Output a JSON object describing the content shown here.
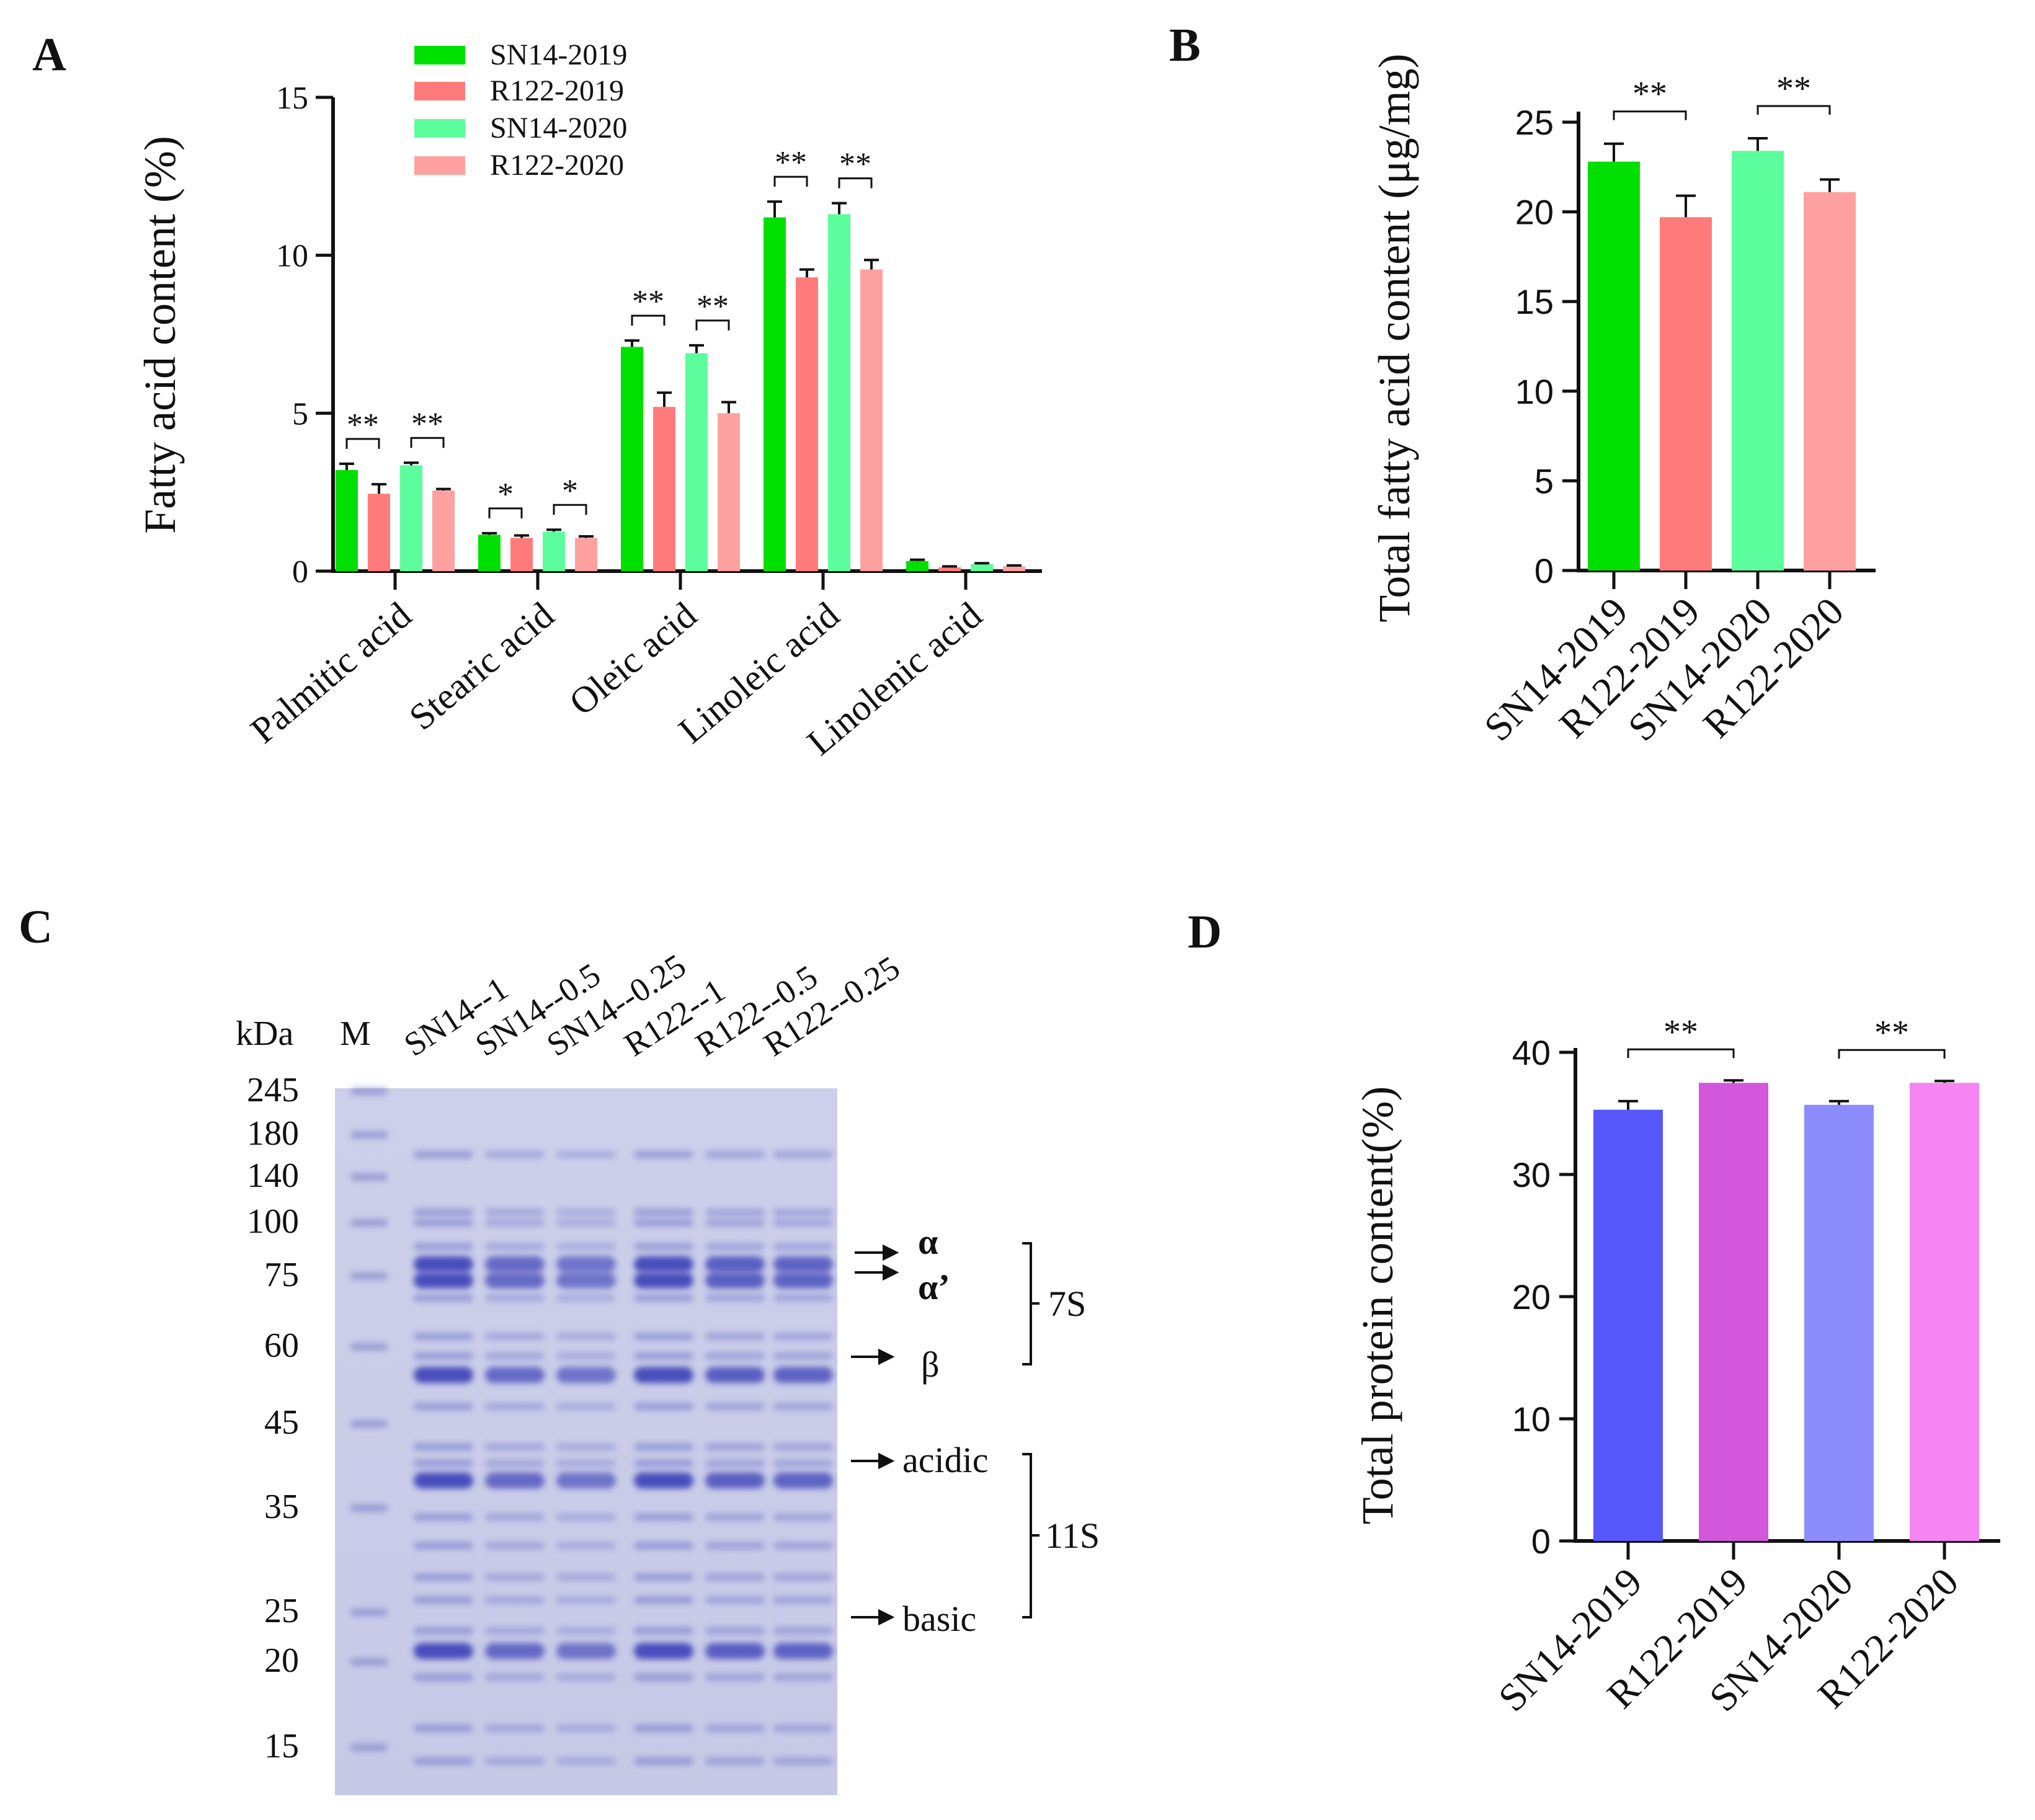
{
  "panel_labels": {
    "a": "A",
    "b": "B",
    "c": "C",
    "d": "D"
  },
  "chart_data": [
    {
      "panel": "A",
      "type": "bar",
      "title": "",
      "xlabel": "",
      "ylabel": "Fatty acid content  (%)",
      "ylim": [
        0,
        15
      ],
      "yticks": [
        "0",
        "5",
        "10",
        "15"
      ],
      "categories": [
        "Palmitic acid",
        "Stearic acid",
        "Oleic acid",
        "Linoleic acid",
        "Linolenic acid"
      ],
      "legend_position": "top-center",
      "series": [
        {
          "name": "SN14-2019",
          "color": "#00e000",
          "values": [
            3.2,
            1.15,
            7.1,
            11.2,
            0.32
          ],
          "errors": [
            0.2,
            0.05,
            0.2,
            0.5,
            0.04
          ]
        },
        {
          "name": "R122-2019",
          "color": "#ff7b7b",
          "values": [
            2.45,
            1.05,
            5.2,
            9.3,
            0.12
          ],
          "errors": [
            0.3,
            0.08,
            0.45,
            0.25,
            0.03
          ]
        },
        {
          "name": "SN14-2020",
          "color": "#5cfd9c",
          "values": [
            3.35,
            1.25,
            6.9,
            11.3,
            0.22
          ],
          "errors": [
            0.08,
            0.06,
            0.25,
            0.35,
            0.03
          ]
        },
        {
          "name": "R122-2020",
          "color": "#ffa0a0",
          "values": [
            2.55,
            1.05,
            5.0,
            9.55,
            0.15
          ],
          "errors": [
            0.05,
            0.05,
            0.35,
            0.3,
            0.03
          ]
        }
      ],
      "significance": [
        {
          "category": 0,
          "pair": [
            0,
            1
          ],
          "label": "**"
        },
        {
          "category": 0,
          "pair": [
            2,
            3
          ],
          "label": "**"
        },
        {
          "category": 1,
          "pair": [
            0,
            1
          ],
          "label": "*"
        },
        {
          "category": 1,
          "pair": [
            2,
            3
          ],
          "label": "*"
        },
        {
          "category": 2,
          "pair": [
            0,
            1
          ],
          "label": "**"
        },
        {
          "category": 2,
          "pair": [
            2,
            3
          ],
          "label": "**"
        },
        {
          "category": 3,
          "pair": [
            0,
            1
          ],
          "label": "**"
        },
        {
          "category": 3,
          "pair": [
            2,
            3
          ],
          "label": "**"
        }
      ]
    },
    {
      "panel": "B",
      "type": "bar",
      "title": "",
      "xlabel": "",
      "ylabel": "Total fatty acid content (μg/mg)",
      "ylim": [
        0,
        25
      ],
      "yticks": [
        "0",
        "5",
        "10",
        "15",
        "20",
        "25"
      ],
      "categories": [
        "SN14-2019",
        "R122-2019",
        "SN14-2020",
        "R122-2020"
      ],
      "colors": [
        "#00e000",
        "#ff7b7b",
        "#5cfd9c",
        "#ffa0a0"
      ],
      "values": [
        22.8,
        19.7,
        23.4,
        21.1
      ],
      "errors": [
        1.0,
        1.2,
        0.7,
        0.7
      ],
      "significance": [
        {
          "pair": [
            0,
            1
          ],
          "label": "**"
        },
        {
          "pair": [
            2,
            3
          ],
          "label": "**"
        }
      ]
    },
    {
      "panel": "D",
      "type": "bar",
      "title": "",
      "xlabel": "",
      "ylabel": "Total protein content(%)",
      "ylim": [
        0,
        40
      ],
      "yticks": [
        "0",
        "10",
        "20",
        "30",
        "40"
      ],
      "categories": [
        "SN14-2019",
        "R122-2019",
        "SN14-2020",
        "R122-2020"
      ],
      "colors": [
        "#5757fc",
        "#d257da",
        "#8c8cfc",
        "#f585f2"
      ],
      "values": [
        35.3,
        37.5,
        35.7,
        37.5
      ],
      "errors": [
        0.7,
        0.2,
        0.3,
        0.15
      ],
      "significance": [
        {
          "pair": [
            0,
            1
          ],
          "label": "**"
        },
        {
          "pair": [
            2,
            3
          ],
          "label": "**"
        }
      ]
    }
  ],
  "gel": {
    "kda_label": "kDa",
    "marker_label": "M",
    "lanes": [
      "SN14--1",
      "SN14--0.5",
      "SN14--0.25",
      "R122--1",
      "R122--0.5",
      "R122--0.25"
    ],
    "markers": [
      {
        "label": "245",
        "kda": 245
      },
      {
        "label": "180",
        "kda": 180
      },
      {
        "label": "140",
        "kda": 140
      },
      {
        "label": "100",
        "kda": 100
      },
      {
        "label": "75",
        "kda": 75
      },
      {
        "label": "60",
        "kda": 60
      },
      {
        "label": "45",
        "kda": 45
      },
      {
        "label": "35",
        "kda": 35
      },
      {
        "label": "25",
        "kda": 25
      },
      {
        "label": "20",
        "kda": 20
      },
      {
        "label": "15",
        "kda": 15
      }
    ],
    "lane_loads": [
      1.0,
      0.6,
      0.45,
      1.0,
      0.75,
      0.7
    ],
    "sample_bands_kda": [
      160,
      108,
      100,
      88,
      80,
      74,
      70,
      62,
      58,
      54,
      48,
      42,
      40,
      38,
      34,
      31,
      28,
      26,
      23,
      21,
      19,
      16,
      14
    ],
    "strong_bands_kda": [
      80,
      74,
      54,
      38,
      21
    ],
    "annotations": {
      "alpha": "α",
      "alpha_prime": "α’",
      "beta": "β",
      "acidic": "acidic",
      "basic": "basic",
      "group_7s": "7S",
      "group_11s": "11S"
    }
  }
}
